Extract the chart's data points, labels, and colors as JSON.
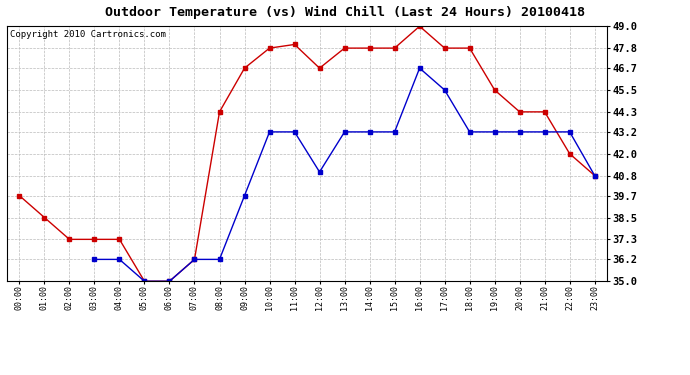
{
  "title": "Outdoor Temperature (vs) Wind Chill (Last 24 Hours) 20100418",
  "copyright": "Copyright 2010 Cartronics.com",
  "hours": [
    "00:00",
    "01:00",
    "02:00",
    "03:00",
    "04:00",
    "05:00",
    "06:00",
    "07:00",
    "08:00",
    "09:00",
    "10:00",
    "11:00",
    "12:00",
    "13:00",
    "14:00",
    "15:00",
    "16:00",
    "17:00",
    "18:00",
    "19:00",
    "20:00",
    "21:00",
    "22:00",
    "23:00"
  ],
  "temp": [
    39.7,
    38.5,
    37.3,
    37.3,
    37.3,
    35.0,
    35.0,
    36.2,
    44.3,
    46.7,
    47.8,
    48.0,
    46.7,
    47.8,
    47.8,
    47.8,
    49.0,
    47.8,
    47.8,
    45.5,
    44.3,
    44.3,
    42.0,
    40.8
  ],
  "windchill": [
    null,
    null,
    null,
    36.2,
    36.2,
    35.0,
    35.0,
    36.2,
    36.2,
    39.7,
    43.2,
    43.2,
    41.0,
    43.2,
    43.2,
    43.2,
    46.7,
    45.5,
    43.2,
    43.2,
    43.2,
    43.2,
    43.2,
    40.8
  ],
  "temp_color": "#cc0000",
  "windchill_color": "#0000cc",
  "bg_color": "#ffffff",
  "plot_bg_color": "#ffffff",
  "grid_color": "#bbbbbb",
  "ylim": [
    35.0,
    49.0
  ],
  "yticks": [
    35.0,
    36.2,
    37.3,
    38.5,
    39.7,
    40.8,
    42.0,
    43.2,
    44.3,
    45.5,
    46.7,
    47.8,
    49.0
  ],
  "title_fontsize": 9.5,
  "copyright_fontsize": 6.5,
  "xtick_fontsize": 6.0,
  "ytick_fontsize": 7.5
}
